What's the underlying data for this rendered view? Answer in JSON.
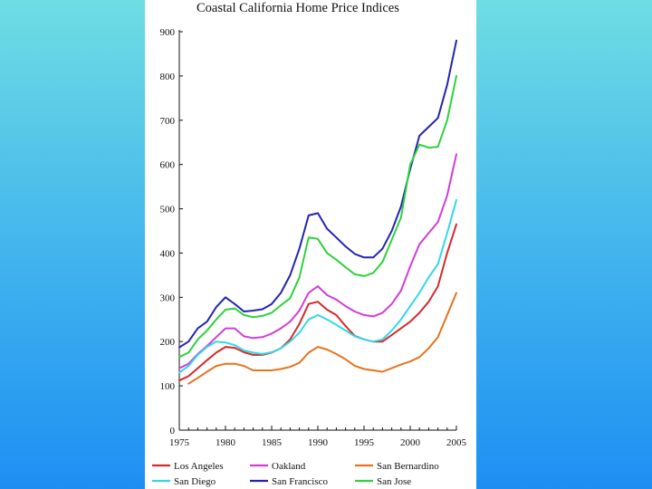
{
  "chart_data": {
    "type": "line",
    "title": "Coastal California Home Price Indices",
    "xlabel": "",
    "ylabel": "",
    "xlim": [
      1975,
      2005
    ],
    "ylim": [
      0,
      900
    ],
    "x_ticks": [
      1975,
      1980,
      1985,
      1990,
      1995,
      2000,
      2005
    ],
    "y_ticks": [
      0,
      100,
      200,
      300,
      400,
      500,
      600,
      700,
      800,
      900
    ],
    "grid": false,
    "legend_position": "bottom",
    "series": [
      {
        "name": "Los Angeles",
        "color": "#d32a2a",
        "x": [
          1975,
          1976,
          1977,
          1978,
          1979,
          1980,
          1981,
          1982,
          1983,
          1984,
          1985,
          1986,
          1987,
          1988,
          1989,
          1990,
          1991,
          1992,
          1993,
          1994,
          1995,
          1996,
          1997,
          1998,
          1999,
          2000,
          2001,
          2002,
          2003,
          2004,
          2005
        ],
        "values": [
          112,
          122,
          140,
          158,
          175,
          188,
          186,
          176,
          170,
          170,
          175,
          185,
          205,
          240,
          285,
          290,
          272,
          260,
          235,
          213,
          205,
          200,
          200,
          215,
          230,
          245,
          265,
          290,
          325,
          400,
          465
        ]
      },
      {
        "name": "Oakland",
        "color": "#d13ed6",
        "x": [
          1975,
          1976,
          1977,
          1978,
          1979,
          1980,
          1981,
          1982,
          1983,
          1984,
          1985,
          1986,
          1987,
          1988,
          1989,
          1990,
          1991,
          1992,
          1993,
          1994,
          1995,
          1996,
          1997,
          1998,
          1999,
          2000,
          2001,
          2002,
          2003,
          2004,
          2005
        ],
        "values": [
          140,
          150,
          172,
          190,
          210,
          230,
          230,
          212,
          208,
          210,
          218,
          230,
          245,
          270,
          310,
          325,
          305,
          295,
          280,
          268,
          260,
          257,
          265,
          285,
          315,
          370,
          420,
          445,
          470,
          530,
          623
        ]
      },
      {
        "name": "San Bernardino",
        "color": "#e5741e",
        "x": [
          1976,
          1977,
          1978,
          1979,
          1980,
          1981,
          1982,
          1983,
          1984,
          1985,
          1986,
          1987,
          1988,
          1989,
          1990,
          1991,
          1992,
          1993,
          1994,
          1995,
          1996,
          1997,
          1998,
          1999,
          2000,
          2001,
          2002,
          2003,
          2004,
          2005
        ],
        "values": [
          105,
          118,
          132,
          145,
          150,
          150,
          145,
          135,
          135,
          135,
          138,
          143,
          152,
          175,
          188,
          182,
          172,
          160,
          145,
          138,
          135,
          132,
          140,
          148,
          155,
          165,
          185,
          210,
          260,
          310
        ]
      },
      {
        "name": "San Diego",
        "color": "#32d8e8",
        "x": [
          1975,
          1976,
          1977,
          1978,
          1979,
          1980,
          1981,
          1982,
          1983,
          1984,
          1985,
          1986,
          1987,
          1988,
          1989,
          1990,
          1991,
          1992,
          1993,
          1994,
          1995,
          1996,
          1997,
          1998,
          1999,
          2000,
          2001,
          2002,
          2003,
          2004,
          2005
        ],
        "values": [
          130,
          145,
          170,
          188,
          200,
          198,
          192,
          180,
          175,
          172,
          176,
          185,
          200,
          220,
          250,
          260,
          250,
          238,
          225,
          212,
          205,
          200,
          205,
          225,
          250,
          280,
          310,
          345,
          375,
          445,
          520
        ]
      },
      {
        "name": "San Francisco",
        "color": "#2424b0",
        "x": [
          1975,
          1976,
          1977,
          1978,
          1979,
          1980,
          1981,
          1982,
          1983,
          1984,
          1985,
          1986,
          1987,
          1988,
          1989,
          1990,
          1991,
          1992,
          1993,
          1994,
          1995,
          1996,
          1997,
          1998,
          1999,
          2000,
          2001,
          2002,
          2003,
          2004,
          2005
        ],
        "values": [
          187,
          200,
          230,
          245,
          278,
          300,
          285,
          268,
          270,
          273,
          285,
          310,
          350,
          410,
          485,
          490,
          455,
          435,
          415,
          398,
          390,
          390,
          410,
          450,
          505,
          590,
          665,
          685,
          705,
          780,
          880
        ]
      },
      {
        "name": "San Jose",
        "color": "#2ed23a",
        "x": [
          1975,
          1976,
          1977,
          1978,
          1979,
          1980,
          1981,
          1982,
          1983,
          1984,
          1985,
          1986,
          1987,
          1988,
          1989,
          1990,
          1991,
          1992,
          1993,
          1994,
          1995,
          1996,
          1997,
          1998,
          1999,
          2000,
          2001,
          2002,
          2003,
          2004,
          2005
        ],
        "values": [
          165,
          175,
          205,
          225,
          250,
          272,
          275,
          260,
          255,
          258,
          265,
          282,
          298,
          345,
          435,
          432,
          400,
          385,
          368,
          352,
          348,
          355,
          380,
          430,
          480,
          600,
          645,
          638,
          640,
          700,
          800
        ]
      }
    ]
  }
}
